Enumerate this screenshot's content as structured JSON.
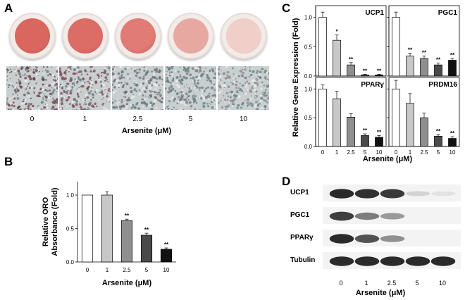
{
  "panel_a": {
    "letter": "A",
    "tick_labels": [
      "0",
      "1",
      "2.5",
      "5",
      "10"
    ],
    "xlabel": "Arsenite (μM)",
    "dish_colors": [
      "#d9665f",
      "#dc6c66",
      "#e07b76",
      "#e8a8a2",
      "#efcfc8"
    ],
    "micro_tints": [
      "#6e3a46",
      "#7a4a55",
      "#6a6a70",
      "#6d7a7c",
      "#8a8a8c"
    ]
  },
  "chart_data": [
    {
      "id": "B",
      "type": "bar",
      "categories": [
        "0",
        "1",
        "2.5",
        "5",
        "10"
      ],
      "values": [
        1.0,
        1.0,
        0.62,
        0.4,
        0.19
      ],
      "errors": [
        0,
        0.05,
        0.02,
        0.03,
        0.02
      ],
      "significance": [
        "",
        "",
        "**",
        "**",
        "**"
      ],
      "colors": [
        "#ffffff",
        "#c8c8c8",
        "#8f8f8f",
        "#4a4a4a",
        "#111111"
      ],
      "ylabel": "Relative ORO\nAbsorbance (Fold)",
      "xlabel": "Arsenite (μM)",
      "ylim": [
        0,
        1.2
      ],
      "yticks": [
        "0.0",
        "0.5",
        "1.0"
      ]
    },
    {
      "id": "C",
      "type": "bar",
      "ylabel": "Relative Gene Expression (Fold)",
      "xlabel": "Arsenite (μM)",
      "categories": [
        "0",
        "1",
        "2.5",
        "5",
        "10"
      ],
      "colors": [
        "#ffffff",
        "#c8c8c8",
        "#8f8f8f",
        "#4a4a4a",
        "#111111"
      ],
      "ylim": [
        0,
        1.2
      ],
      "yticks": [
        "0.0",
        "0.5",
        "1.0"
      ],
      "subplots": [
        {
          "title": "UCP1",
          "values": [
            1.0,
            0.61,
            0.19,
            0.02,
            0.02
          ],
          "errors": [
            0.09,
            0.09,
            0.04,
            0.01,
            0.01
          ],
          "significance": [
            "",
            "*",
            "**",
            "**",
            "**"
          ]
        },
        {
          "title": "PGC1",
          "values": [
            1.0,
            0.34,
            0.3,
            0.19,
            0.27
          ],
          "errors": [
            0.09,
            0.05,
            0.04,
            0.03,
            0.03
          ],
          "significance": [
            "",
            "**",
            "**",
            "**",
            "**"
          ]
        },
        {
          "title": "PPARγ",
          "values": [
            1.0,
            0.83,
            0.51,
            0.19,
            0.16
          ],
          "errors": [
            0.07,
            0.13,
            0.06,
            0.03,
            0.03
          ],
          "significance": [
            "",
            "",
            "",
            "**",
            "**"
          ]
        },
        {
          "title": "PRDM16",
          "values": [
            1.0,
            0.75,
            0.5,
            0.18,
            0.14
          ],
          "errors": [
            0.15,
            0.17,
            0.08,
            0.03,
            0.03
          ],
          "significance": [
            "",
            "",
            "",
            "**",
            "**"
          ]
        }
      ]
    }
  ],
  "panel_d": {
    "letter": "D",
    "rows": [
      {
        "label": "UCP1",
        "intensities": [
          0.95,
          0.92,
          0.88,
          0.12,
          0.05
        ]
      },
      {
        "label": "PGC1",
        "intensities": [
          0.85,
          0.55,
          0.4,
          0.0,
          0.0
        ]
      },
      {
        "label": "PPARγ",
        "intensities": [
          0.95,
          0.75,
          0.45,
          0.0,
          0.0
        ]
      },
      {
        "label": "Tubulin",
        "intensities": [
          0.95,
          0.95,
          0.95,
          0.95,
          0.95
        ]
      }
    ],
    "tick_labels": [
      "0",
      "1",
      "2.5",
      "5",
      "10"
    ],
    "xlabel": "Arsenite (μM)"
  },
  "panel_letters": {
    "b": "B",
    "c": "C"
  }
}
